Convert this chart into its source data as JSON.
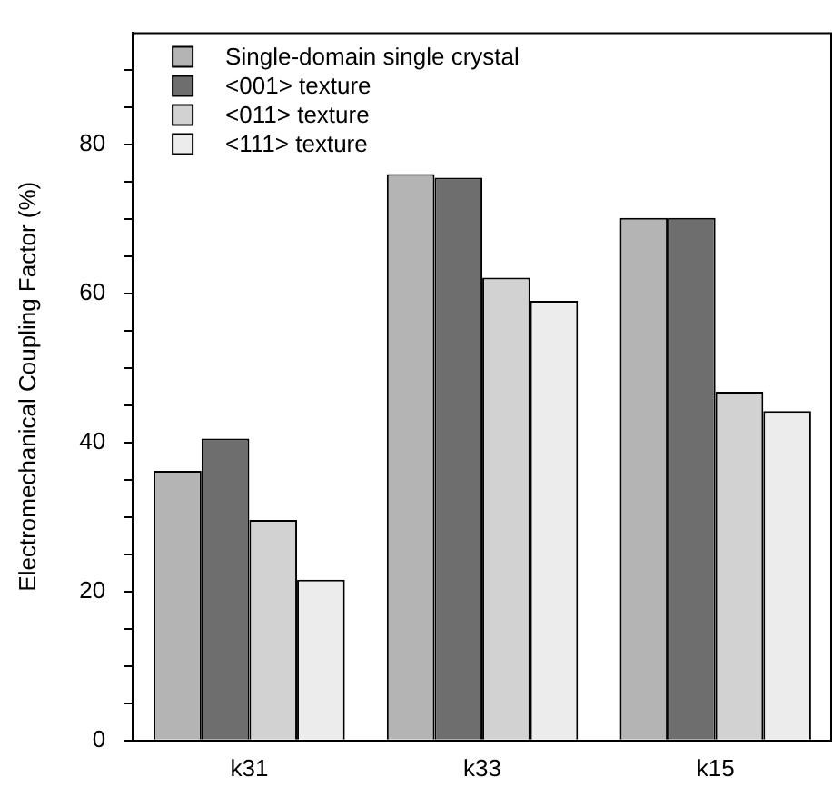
{
  "chart_data": {
    "type": "bar",
    "ylabel": "Electromechanical Coupling Factor (%)",
    "categories": [
      "k31",
      "k33",
      "k15"
    ],
    "series": [
      {
        "name": "Single-domain single crystal",
        "color": "#b4b4b4",
        "values": [
          36.2,
          76.0,
          70.1
        ]
      },
      {
        "name": "<001> texture",
        "color": "#6e6e6e",
        "values": [
          40.5,
          75.5,
          70.1
        ]
      },
      {
        "name": "<011> texture",
        "color": "#d2d2d2",
        "values": [
          29.6,
          62.1,
          46.8
        ]
      },
      {
        "name": "<111> texture",
        "color": "#ececec",
        "values": [
          21.6,
          59.0,
          44.2
        ]
      }
    ],
    "ylim": [
      0,
      95
    ],
    "yticks": [
      0,
      {
        "value": 5,
        "label": null
      },
      {
        "value": 10,
        "label": null
      },
      {
        "value": 15,
        "label": null
      },
      20,
      {
        "value": 25,
        "label": null
      },
      {
        "value": 30,
        "label": null
      },
      {
        "value": 35,
        "label": null
      },
      40,
      {
        "value": 45,
        "label": null
      },
      {
        "value": 50,
        "label": null
      },
      {
        "value": 55,
        "label": null
      },
      60,
      {
        "value": 65,
        "label": null
      },
      {
        "value": 70,
        "label": null
      },
      {
        "value": 75,
        "label": null
      },
      80,
      {
        "value": 85,
        "label": null
      },
      {
        "value": 90,
        "label": null
      }
    ],
    "grid": false,
    "legend": "top left"
  }
}
